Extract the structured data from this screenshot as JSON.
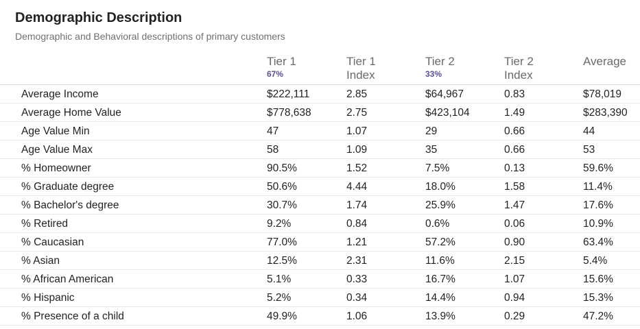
{
  "header": {
    "title": "Demographic Description",
    "subtitle": "Demographic and Behavioral descriptions of primary customers"
  },
  "table": {
    "columns": [
      {
        "label": "",
        "sub": ""
      },
      {
        "label": "Tier 1",
        "sub": "67%"
      },
      {
        "label": "Tier 1\nIndex",
        "sub": ""
      },
      {
        "label": "Tier 2",
        "sub": "33%"
      },
      {
        "label": "Tier 2\nIndex",
        "sub": ""
      },
      {
        "label": "Average",
        "sub": ""
      }
    ],
    "rows": [
      [
        "Average Income",
        "$222,111",
        "2.85",
        "$64,967",
        "0.83",
        "$78,019"
      ],
      [
        "Average Home Value",
        "$778,638",
        "2.75",
        "$423,104",
        "1.49",
        "$283,390"
      ],
      [
        "Age Value Min",
        "47",
        "1.07",
        "29",
        "0.66",
        "44"
      ],
      [
        "Age Value Max",
        "58",
        "1.09",
        "35",
        "0.66",
        "53"
      ],
      [
        "% Homeowner",
        "90.5%",
        "1.52",
        "7.5%",
        "0.13",
        "59.6%"
      ],
      [
        "% Graduate degree",
        "50.6%",
        "4.44",
        "18.0%",
        "1.58",
        "11.4%"
      ],
      [
        "% Bachelor's degree",
        "30.7%",
        "1.74",
        "25.9%",
        "1.47",
        "17.6%"
      ],
      [
        "% Retired",
        "9.2%",
        "0.84",
        "0.6%",
        "0.06",
        "10.9%"
      ],
      [
        "% Caucasian",
        "77.0%",
        "1.21",
        "57.2%",
        "0.90",
        "63.4%"
      ],
      [
        "% Asian",
        "12.5%",
        "2.31",
        "11.6%",
        "2.15",
        "5.4%"
      ],
      [
        "% African American",
        "5.1%",
        "0.33",
        "16.7%",
        "1.07",
        "15.6%"
      ],
      [
        "% Hispanic",
        "5.2%",
        "0.34",
        "14.4%",
        "0.94",
        "15.3%"
      ],
      [
        "% Presence of a child",
        "49.9%",
        "1.06",
        "13.9%",
        "0.29",
        "47.2%"
      ]
    ]
  },
  "colors": {
    "share_accent": "#5b4f96",
    "header_text": "#6a6a6a",
    "body_text": "#222222"
  }
}
